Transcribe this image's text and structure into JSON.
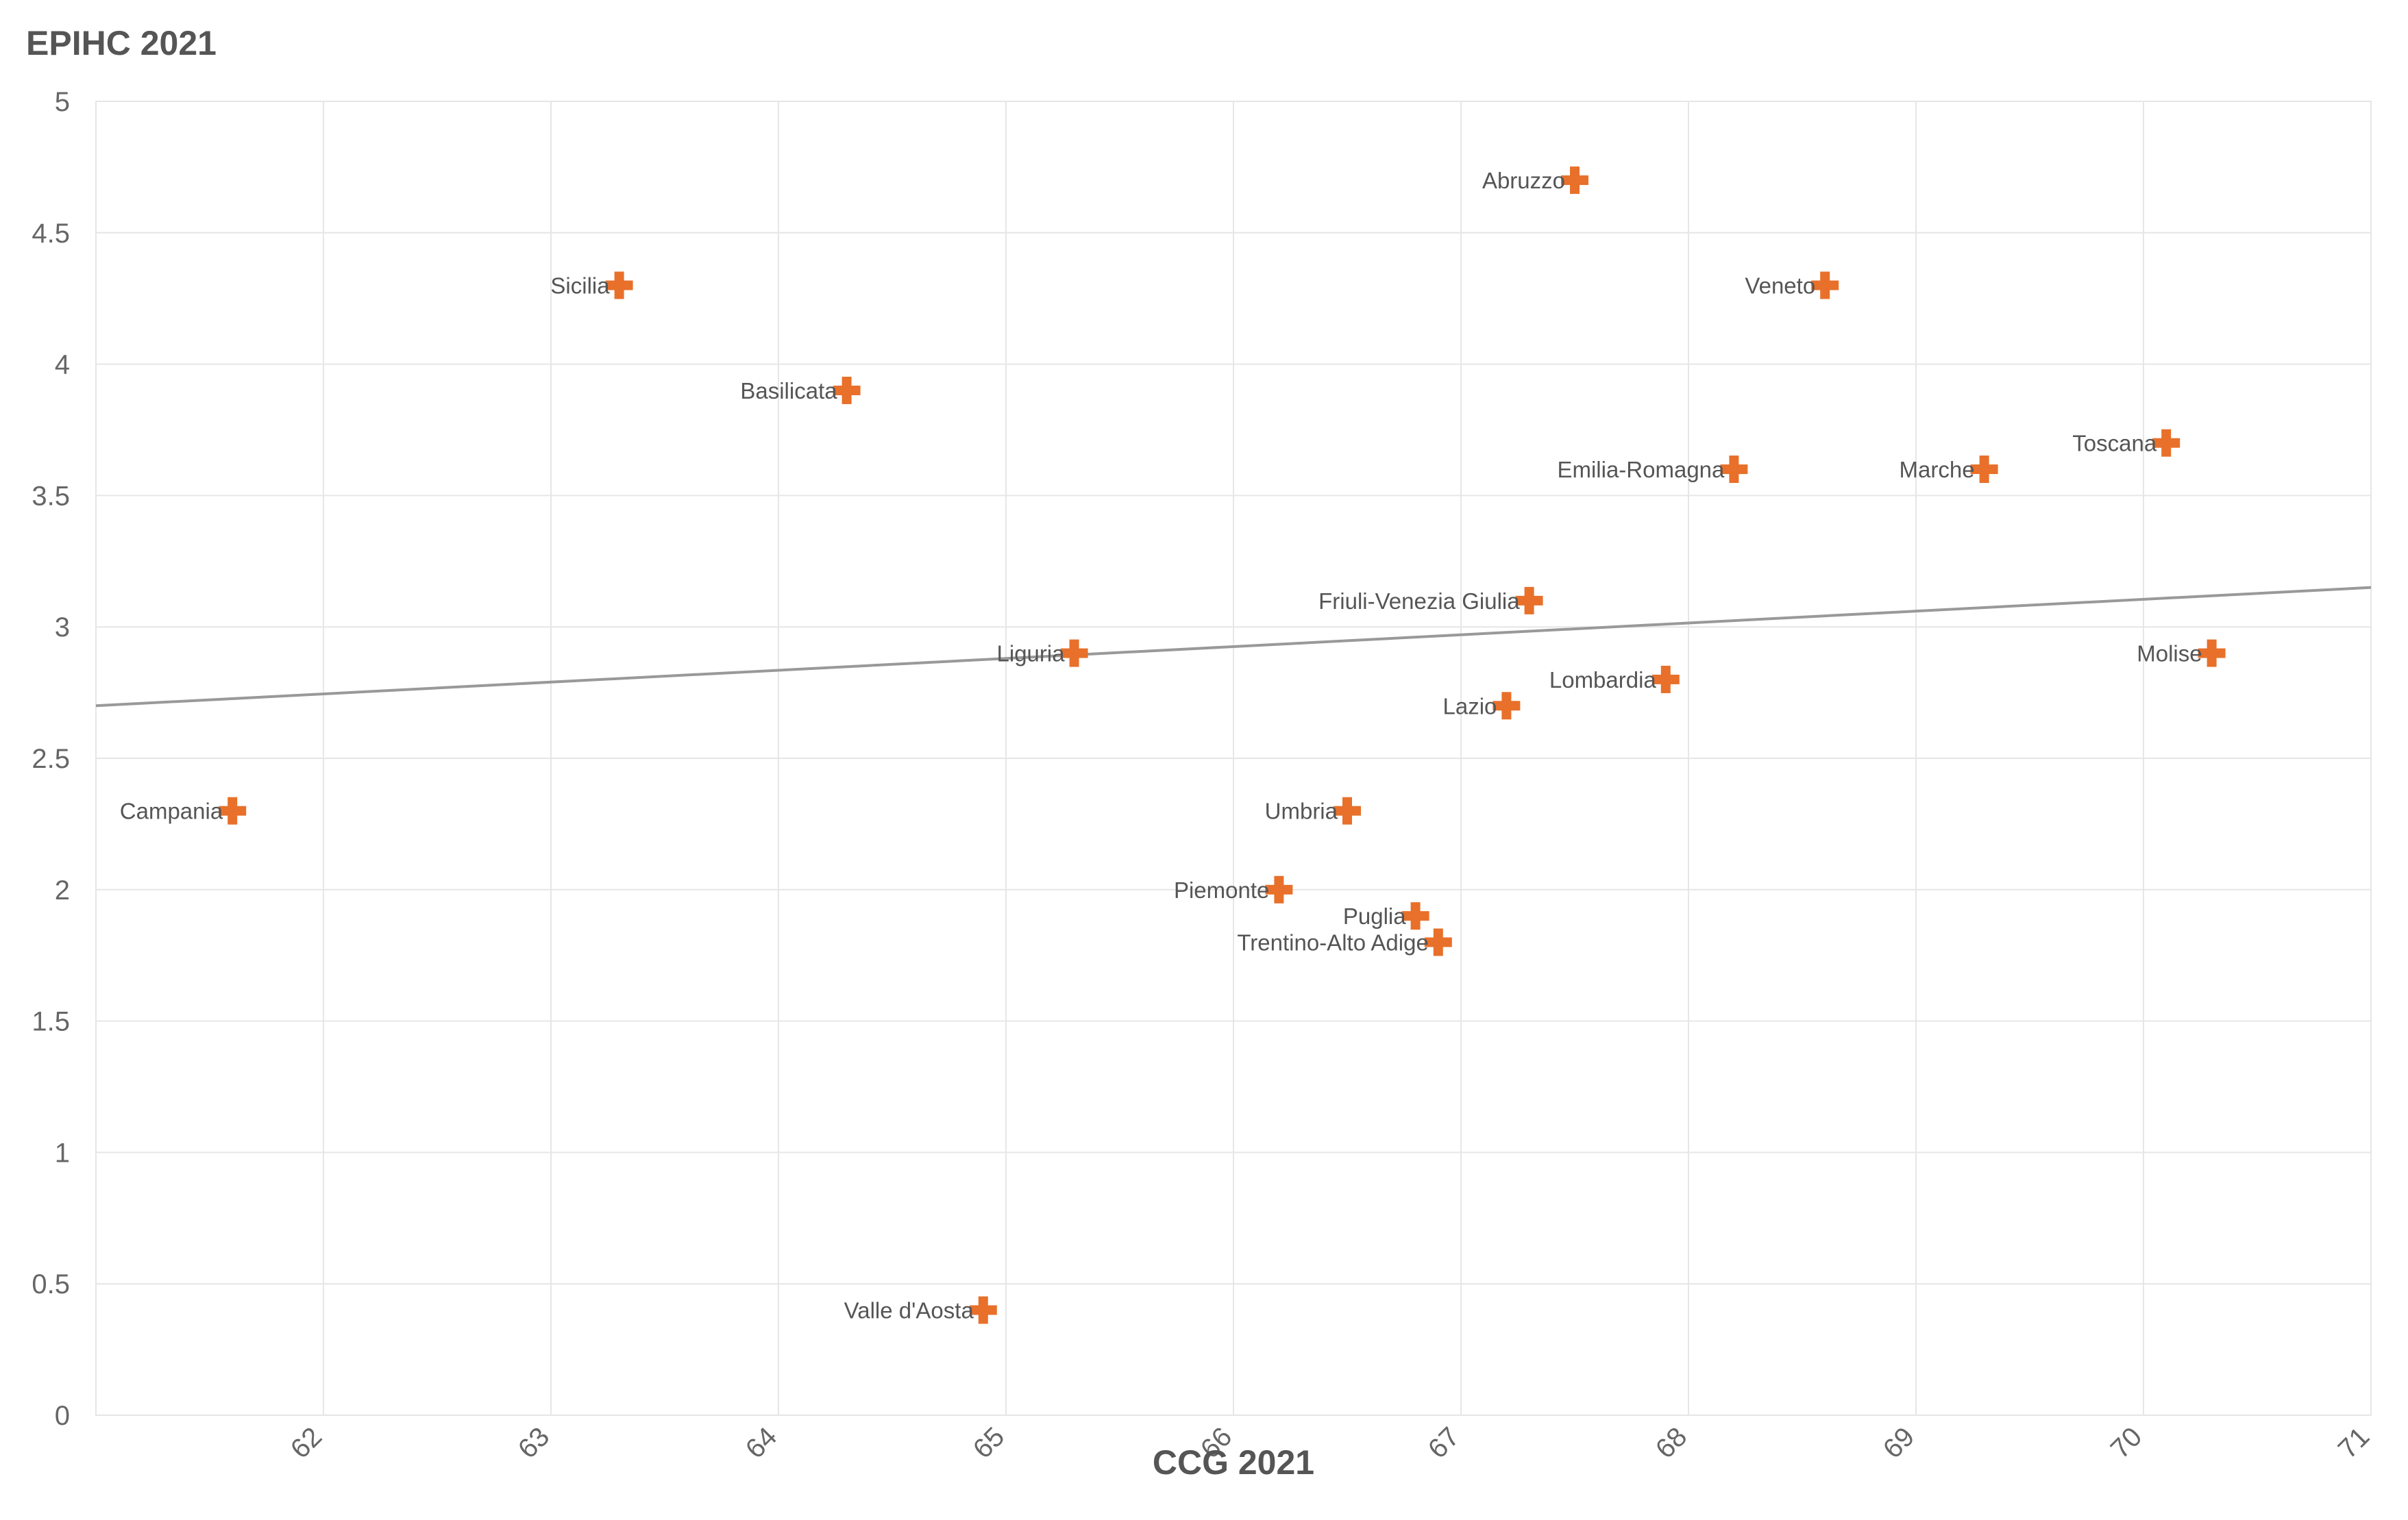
{
  "chart_data": {
    "type": "scatter",
    "title": "",
    "xlabel": "CCG 2021",
    "ylabel": "EPIHC 2021",
    "xlim": [
      61,
      71
    ],
    "ylim": [
      0,
      5
    ],
    "x_ticks": [
      62,
      63,
      64,
      65,
      66,
      67,
      68,
      69,
      70,
      71
    ],
    "y_ticks": [
      0,
      0.5,
      1,
      1.5,
      2,
      2.5,
      3,
      3.5,
      4,
      4.5,
      5
    ],
    "grid": true,
    "marker_color": "#E8702A",
    "trendline": {
      "color": "#999999",
      "x": [
        61,
        71
      ],
      "y": [
        2.7,
        3.15
      ]
    },
    "points": [
      {
        "label": "Abruzzo",
        "x": 67.5,
        "y": 4.7
      },
      {
        "label": "Sicilia",
        "x": 63.3,
        "y": 4.3
      },
      {
        "label": "Veneto",
        "x": 68.6,
        "y": 4.3
      },
      {
        "label": "Basilicata",
        "x": 64.3,
        "y": 3.9
      },
      {
        "label": "Toscana",
        "x": 70.1,
        "y": 3.7
      },
      {
        "label": "Emilia-Romagna",
        "x": 68.2,
        "y": 3.6
      },
      {
        "label": "Marche",
        "x": 69.3,
        "y": 3.6
      },
      {
        "label": "Friuli-Venezia Giulia",
        "x": 67.3,
        "y": 3.1
      },
      {
        "label": "Liguria",
        "x": 65.3,
        "y": 2.9
      },
      {
        "label": "Molise",
        "x": 70.3,
        "y": 2.9
      },
      {
        "label": "Lombardia",
        "x": 67.9,
        "y": 2.8
      },
      {
        "label": "Lazio",
        "x": 67.2,
        "y": 2.7
      },
      {
        "label": "Campania",
        "x": 61.6,
        "y": 2.3
      },
      {
        "label": "Umbria",
        "x": 66.5,
        "y": 2.3
      },
      {
        "label": "Piemonte",
        "x": 66.2,
        "y": 2.0
      },
      {
        "label": "Puglia",
        "x": 66.8,
        "y": 1.9
      },
      {
        "label": "Trentino-Alto Adige",
        "x": 66.9,
        "y": 1.8
      },
      {
        "label": "Valle d'Aosta",
        "x": 64.9,
        "y": 0.4
      }
    ]
  }
}
